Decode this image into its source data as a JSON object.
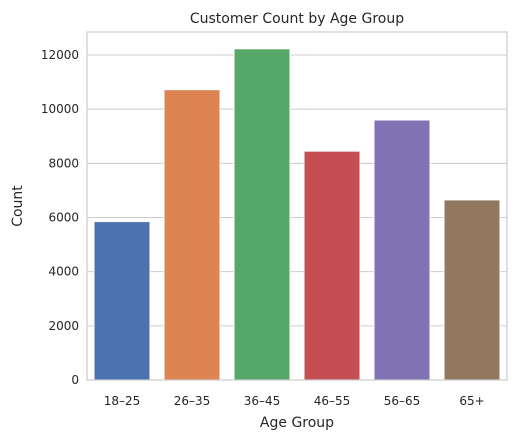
{
  "chart_data": {
    "type": "bar",
    "title": "Customer Count by Age Group",
    "xlabel": "Age Group",
    "ylabel": "Count",
    "categories": [
      "18–25",
      "26–35",
      "36–45",
      "46–55",
      "56–65",
      "65+"
    ],
    "values": [
      5850,
      10720,
      12230,
      8450,
      9600,
      6650
    ],
    "ylim": [
      0,
      12850
    ],
    "yticks": [
      0,
      2000,
      4000,
      6000,
      8000,
      10000,
      12000
    ],
    "grid": "horizontal",
    "colors": [
      "#4c72b0",
      "#dd8452",
      "#55a868",
      "#c44e52",
      "#8172b3",
      "#937860"
    ]
  }
}
